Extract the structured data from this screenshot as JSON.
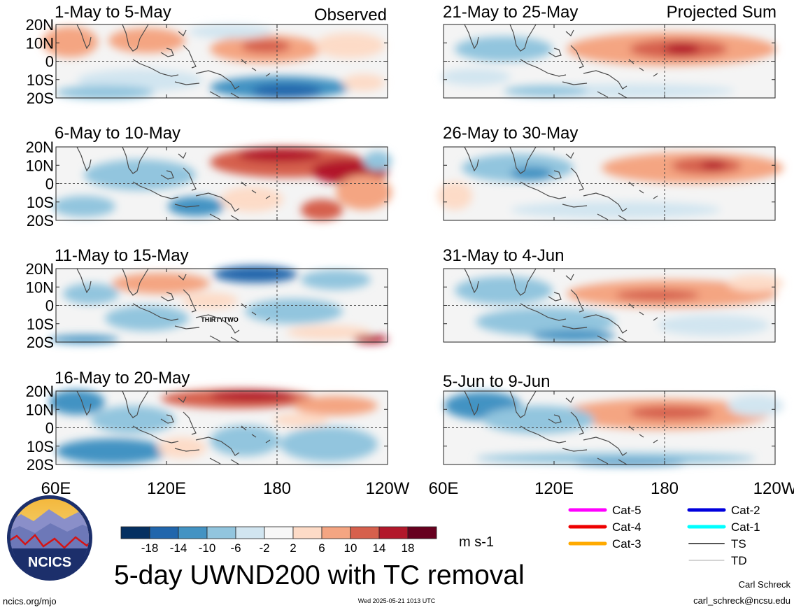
{
  "figure": {
    "title": "5-day UWND200 with TC removal",
    "observed_label": "Observed",
    "projected_label": "Projected Sum",
    "units": "m s-1",
    "website": "ncics.org/mjo",
    "timestamp": "Wed 2025-05-21 1013 UTC",
    "author": "Carl Schreck",
    "email": "carl_schreck@ncsu.edu",
    "logo_text": "NCICS"
  },
  "axes": {
    "lat_labels": [
      "20N",
      "10N",
      "0",
      "10S",
      "20S"
    ],
    "lon_labels": [
      "60E",
      "120E",
      "180",
      "120W"
    ]
  },
  "panels": [
    {
      "label": "1-May to 5-May",
      "mode": "observed"
    },
    {
      "label": "6-May to 10-May",
      "mode": "observed"
    },
    {
      "label": "11-May to 15-May",
      "mode": "observed",
      "storm_label": "THIRTYTWO"
    },
    {
      "label": "16-May to 20-May",
      "mode": "observed"
    },
    {
      "label": "21-May to 25-May",
      "mode": "projected"
    },
    {
      "label": "26-May to 30-May",
      "mode": "projected"
    },
    {
      "label": "31-May to 4-Jun",
      "mode": "projected"
    },
    {
      "label": "5-Jun to 9-Jun",
      "mode": "projected"
    }
  ],
  "colorbar": {
    "tick_labels": [
      "-18",
      "-14",
      "-10",
      "-6",
      "-2",
      "2",
      "6",
      "10",
      "14",
      "18"
    ],
    "colors": [
      "#053061",
      "#2166ac",
      "#4393c3",
      "#92c5de",
      "#d1e5f0",
      "#f7f7f7",
      "#fddbc7",
      "#f4a582",
      "#d6604d",
      "#b2182b",
      "#67001f"
    ]
  },
  "legend": [
    {
      "label": "Cat-5",
      "color": "#ff00ff"
    },
    {
      "label": "Cat-4",
      "color": "#ee0000"
    },
    {
      "label": "Cat-3",
      "color": "#ffaa00"
    },
    {
      "label": "Cat-2",
      "color": "#0000dd"
    },
    {
      "label": "Cat-1",
      "color": "#00ffff"
    },
    {
      "label": "TS",
      "color": "#555555"
    },
    {
      "label": "TD",
      "color": "#aaaaaa"
    }
  ]
}
